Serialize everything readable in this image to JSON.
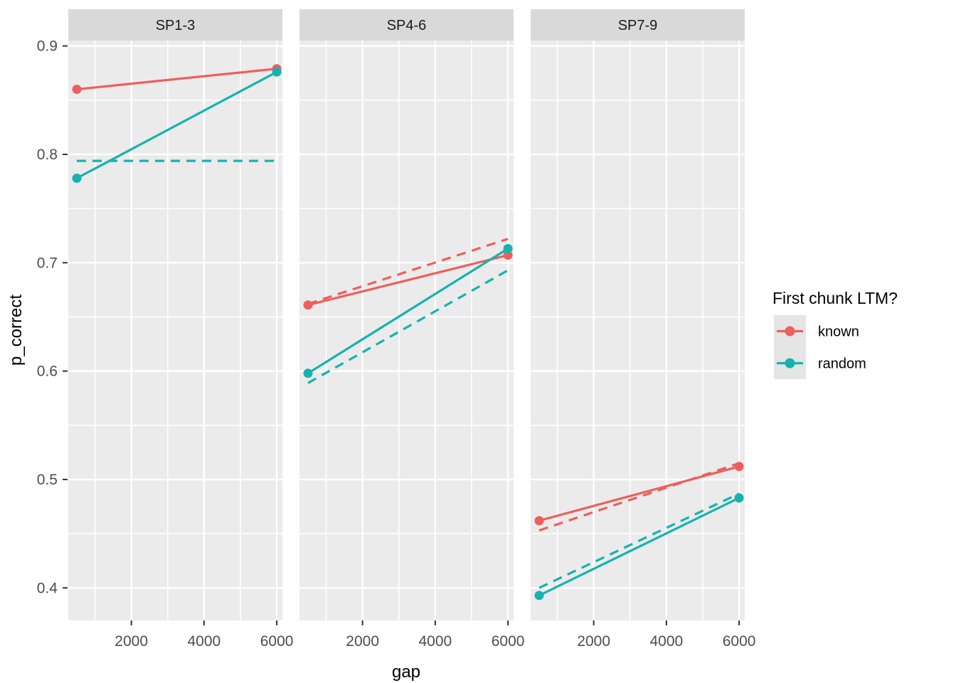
{
  "chart_data": {
    "type": "line",
    "title": "",
    "xlabel": "gap",
    "ylabel": "p_correct",
    "grid": "on",
    "legend_position": "right",
    "xlim": [
      265,
      6155
    ],
    "ylim": [
      0.37,
      0.905
    ],
    "x_ticks": [
      {
        "v": 2000,
        "label": "2000"
      },
      {
        "v": 4000,
        "label": "4000"
      },
      {
        "v": 6000,
        "label": "6000"
      }
    ],
    "x_minor": [
      1000,
      3000,
      5000
    ],
    "y_ticks": [
      {
        "v": 0.4,
        "label": "0.4"
      },
      {
        "v": 0.5,
        "label": "0.5"
      },
      {
        "v": 0.6,
        "label": "0.6"
      },
      {
        "v": 0.7,
        "label": "0.7"
      },
      {
        "v": 0.8,
        "label": "0.8"
      },
      {
        "v": 0.9,
        "label": "0.9"
      }
    ],
    "y_minor": [
      0.45,
      0.55,
      0.65,
      0.75,
      0.85
    ],
    "colors": {
      "known": "#ee5f5b",
      "random": "#17b2b0"
    },
    "facets": [
      {
        "label": "SP1-3",
        "series": [
          {
            "name": "random-model",
            "group": "random",
            "style": "dashed",
            "markers": false,
            "points": [
              [
                500,
                0.794
              ],
              [
                6000,
                0.794
              ]
            ]
          },
          {
            "name": "known",
            "group": "known",
            "style": "solid",
            "markers": true,
            "points": [
              [
                500,
                0.86
              ],
              [
                6000,
                0.879
              ]
            ]
          },
          {
            "name": "random",
            "group": "random",
            "style": "solid",
            "markers": true,
            "points": [
              [
                500,
                0.778
              ],
              [
                6000,
                0.876
              ]
            ]
          }
        ]
      },
      {
        "label": "SP4-6",
        "series": [
          {
            "name": "known-model",
            "group": "known",
            "style": "dashed",
            "markers": false,
            "points": [
              [
                500,
                0.662
              ],
              [
                6000,
                0.722
              ]
            ]
          },
          {
            "name": "random-model",
            "group": "random",
            "style": "dashed",
            "markers": false,
            "points": [
              [
                500,
                0.589
              ],
              [
                6000,
                0.693
              ]
            ]
          },
          {
            "name": "known",
            "group": "known",
            "style": "solid",
            "markers": true,
            "points": [
              [
                500,
                0.661
              ],
              [
                6000,
                0.707
              ]
            ]
          },
          {
            "name": "random",
            "group": "random",
            "style": "solid",
            "markers": true,
            "points": [
              [
                500,
                0.598
              ],
              [
                6000,
                0.713
              ]
            ]
          }
        ]
      },
      {
        "label": "SP7-9",
        "series": [
          {
            "name": "known-model",
            "group": "known",
            "style": "dashed",
            "markers": false,
            "points": [
              [
                500,
                0.453
              ],
              [
                6000,
                0.515
              ]
            ]
          },
          {
            "name": "random-model",
            "group": "random",
            "style": "dashed",
            "markers": false,
            "points": [
              [
                500,
                0.4
              ],
              [
                6000,
                0.487
              ]
            ]
          },
          {
            "name": "known",
            "group": "known",
            "style": "solid",
            "markers": true,
            "points": [
              [
                500,
                0.462
              ],
              [
                6000,
                0.512
              ]
            ]
          },
          {
            "name": "random",
            "group": "random",
            "style": "solid",
            "markers": true,
            "points": [
              [
                500,
                0.393
              ],
              [
                6000,
                0.483
              ]
            ]
          }
        ]
      }
    ],
    "legend": {
      "title": "First chunk LTM?",
      "entries": [
        {
          "label": "known",
          "group": "known"
        },
        {
          "label": "random",
          "group": "random"
        }
      ]
    }
  }
}
